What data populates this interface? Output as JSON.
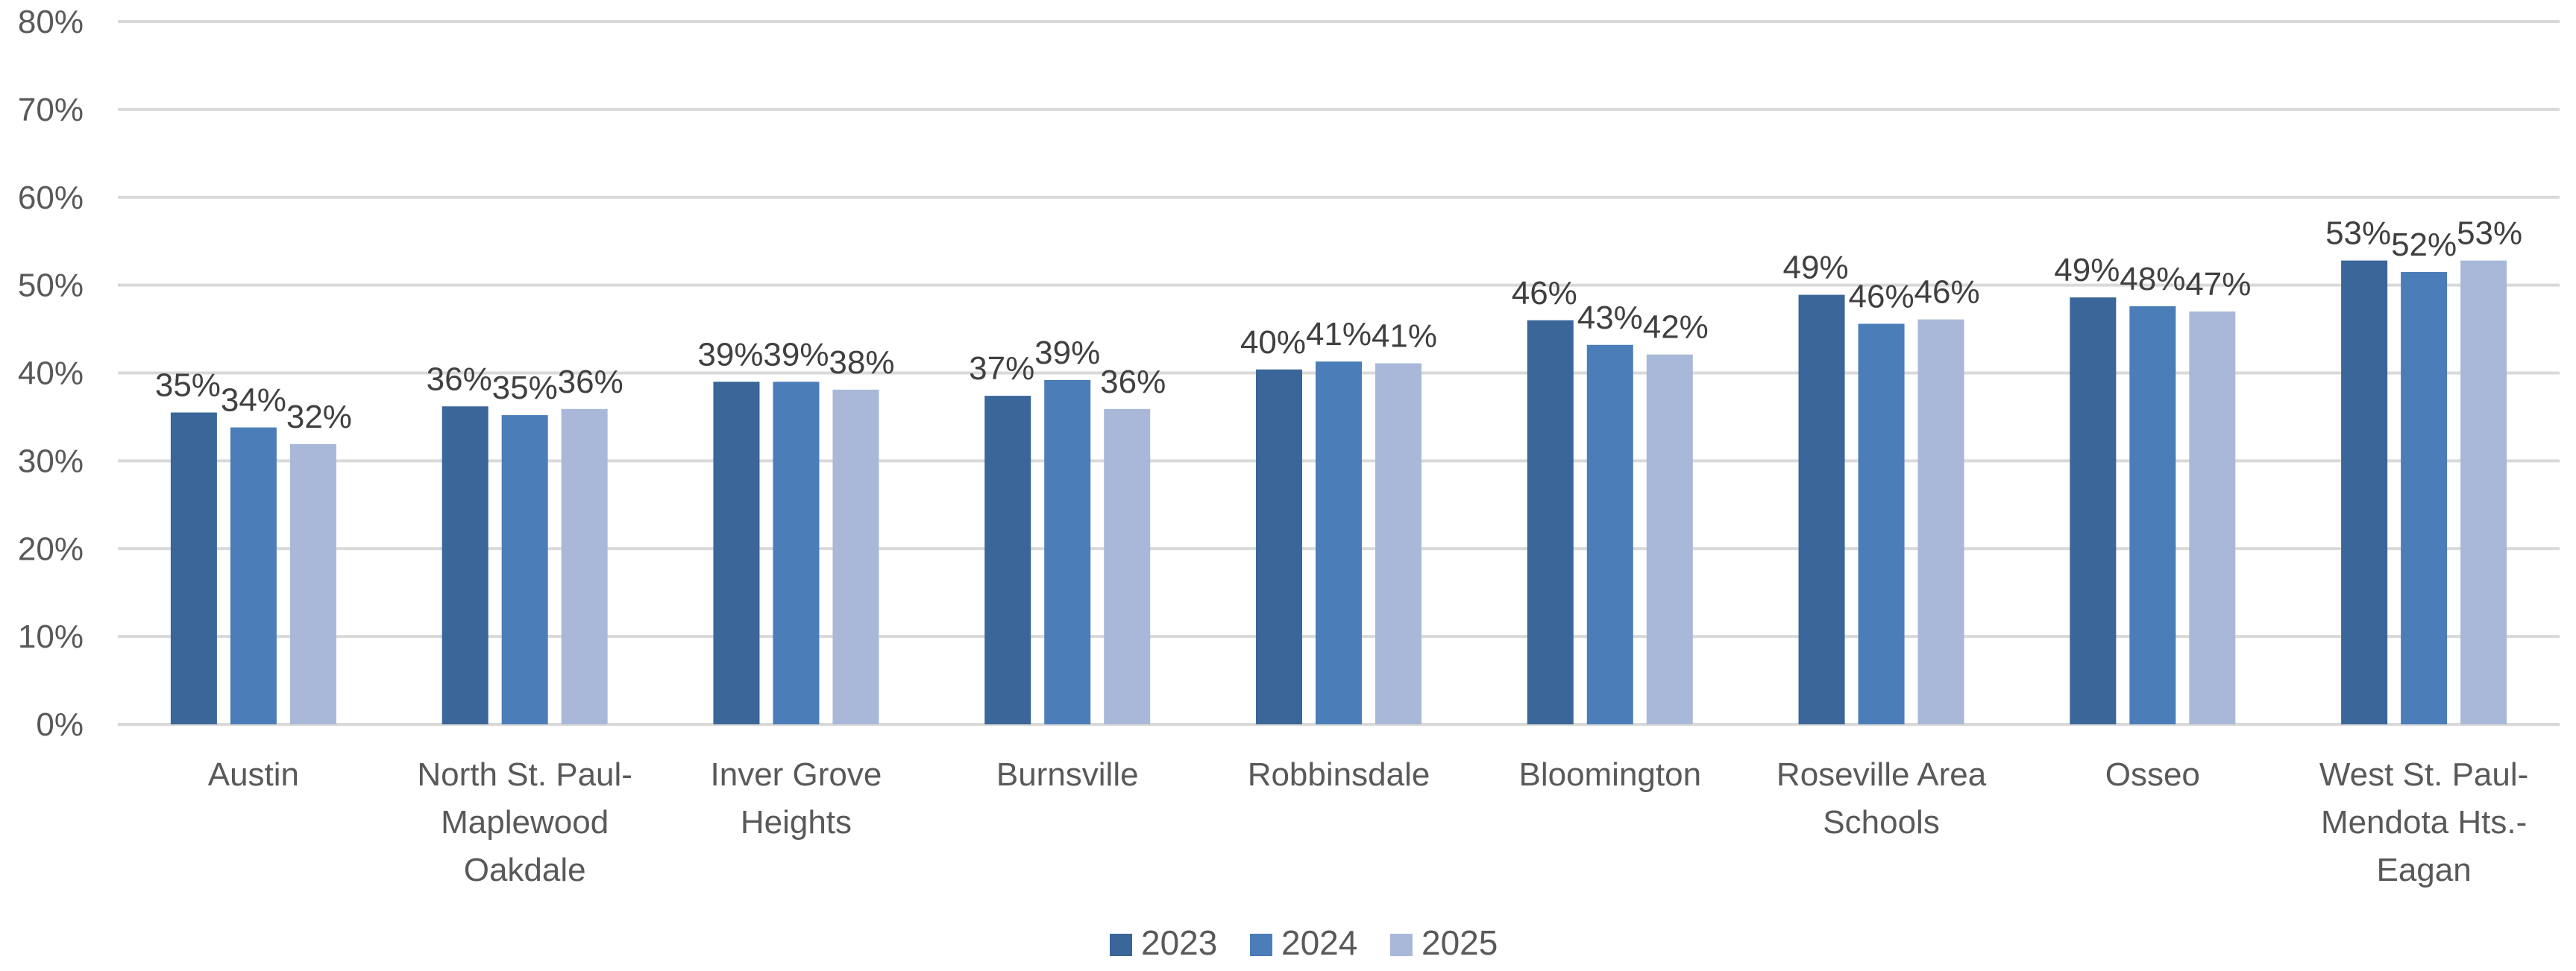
{
  "chart_data": {
    "type": "bar",
    "title": "",
    "xlabel": "",
    "ylabel": "",
    "ylim": [
      0,
      80
    ],
    "y_tick_format": "percent",
    "y_ticks": [
      "0%",
      "10%",
      "20%",
      "30%",
      "40%",
      "50%",
      "60%",
      "70%",
      "80%"
    ],
    "grid": true,
    "legend_position": "bottom",
    "categories": [
      [
        "Austin"
      ],
      [
        "North St. Paul-",
        "Maplewood",
        "Oakdale"
      ],
      [
        "Inver Grove",
        "Heights"
      ],
      [
        "Burnsville"
      ],
      [
        "Robbinsdale"
      ],
      [
        "Bloomington"
      ],
      [
        "Roseville Area",
        "Schools"
      ],
      [
        "Osseo"
      ],
      [
        "West St. Paul-",
        "Mendota Hts.-",
        "Eagan"
      ]
    ],
    "series": [
      {
        "name": "2023",
        "color": "#3A6699",
        "values": [
          35.5,
          36.2,
          39,
          37.4,
          40.4,
          46,
          48.9,
          48.6,
          52.8
        ],
        "labels": [
          "35%",
          "36%",
          "39%",
          "37%",
          "40%",
          "46%",
          "49%",
          "49%",
          "53%"
        ]
      },
      {
        "name": "2024",
        "color": "#4B7DB8",
        "values": [
          33.8,
          35.2,
          39,
          39.2,
          41.3,
          43.2,
          45.6,
          47.6,
          51.5
        ],
        "labels": [
          "34%",
          "35%",
          "39%",
          "39%",
          "41%",
          "43%",
          "46%",
          "48%",
          "52%"
        ]
      },
      {
        "name": "2025",
        "color": "#A9B8D8",
        "values": [
          31.9,
          35.9,
          38.1,
          35.9,
          41.1,
          42.1,
          46.1,
          47,
          52.8
        ],
        "labels": [
          "32%",
          "36%",
          "38%",
          "36%",
          "41%",
          "42%",
          "46%",
          "47%",
          "53%"
        ]
      }
    ],
    "colors": {
      "gridline": "#D9D9D9",
      "axis_text": "#595959",
      "data_label_text": "#404040"
    }
  }
}
